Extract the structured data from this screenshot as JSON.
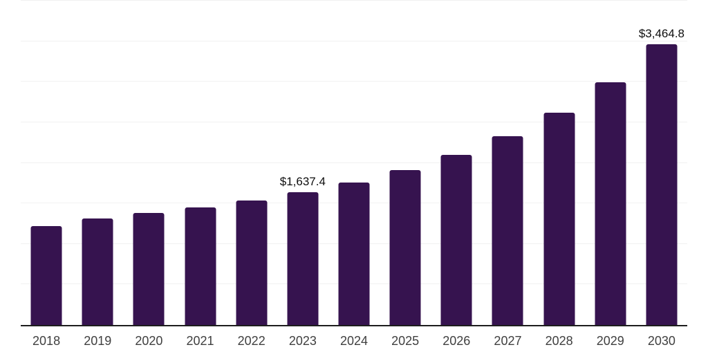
{
  "chart_data": {
    "type": "bar",
    "title": "",
    "xlabel": "",
    "ylabel": "",
    "categories": [
      "2018",
      "2019",
      "2020",
      "2021",
      "2022",
      "2023",
      "2024",
      "2025",
      "2026",
      "2027",
      "2028",
      "2029",
      "2030"
    ],
    "values": [
      1220.0,
      1316.0,
      1381.0,
      1448.0,
      1537.0,
      1637.4,
      1757.0,
      1907.0,
      2098.0,
      2330.0,
      2622.0,
      2990.0,
      3464.8
    ],
    "data_labels": {
      "2023": "$1,637.4",
      "2030": "$3,464.8"
    },
    "ylim": [
      0,
      4000
    ],
    "grid_step": 500,
    "grid": true,
    "legend": false,
    "colors": {
      "bar": "#36134F",
      "grid_line": "#f1f1f1",
      "axis_line": "#1d1d1d",
      "data_label": "#0d0d0d",
      "tick_label": "#3f3f3f",
      "background": "#ffffff"
    }
  }
}
